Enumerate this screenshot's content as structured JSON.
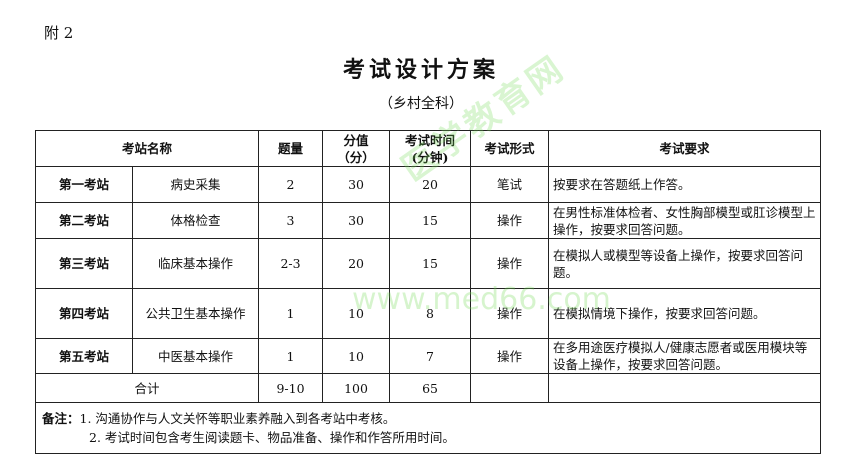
{
  "attachment_label": "附 2",
  "title": "考试设计方案",
  "subtitle": "（乡村全科）",
  "headers": {
    "station": "考站名称",
    "count": "题量",
    "score": "分值\n（分）",
    "time": "考试时间\n(分钟)",
    "form": "考试形式",
    "requirement": "考试要求"
  },
  "rows": [
    {
      "station": "第一考站",
      "name": "病史采集",
      "count": "2",
      "score": "30",
      "time": "20",
      "form": "笔试",
      "requirement": "按要求在答题纸上作答。"
    },
    {
      "station": "第二考站",
      "name": "体格检查",
      "count": "3",
      "score": "30",
      "time": "15",
      "form": "操作",
      "requirement": "在男性标准体检者、女性胸部模型或肛诊模型上操作，按要求回答问题。"
    },
    {
      "station": "第三考站",
      "name": "临床基本操作",
      "count": "2-3",
      "score": "20",
      "time": "15",
      "form": "操作",
      "requirement": "在模拟人或模型等设备上操作，按要求回答问题。"
    },
    {
      "station": "第四考站",
      "name": "公共卫生基本操作",
      "count": "1",
      "score": "10",
      "time": "8",
      "form": "操作",
      "requirement": "在模拟情境下操作，按要求回答问题。"
    },
    {
      "station": "第五考站",
      "name": "中医基本操作",
      "count": "1",
      "score": "10",
      "time": "7",
      "form": "操作",
      "requirement": "在多用途医疗模拟人/健康志愿者或医用模块等设备上操作，按要求回答问题。"
    }
  ],
  "total": {
    "label": "合计",
    "count": "9-10",
    "score": "100",
    "time": "65"
  },
  "notes": {
    "label": "备注：",
    "items": [
      "1. 沟通协作与人文关怀等职业素养融入到各考站中考核。",
      "2. 考试时间包含考生阅读题卡、物品准备、操作和作答所用时间。"
    ]
  },
  "watermark": {
    "text": "医学教育网",
    "url": "www.med66.com"
  }
}
